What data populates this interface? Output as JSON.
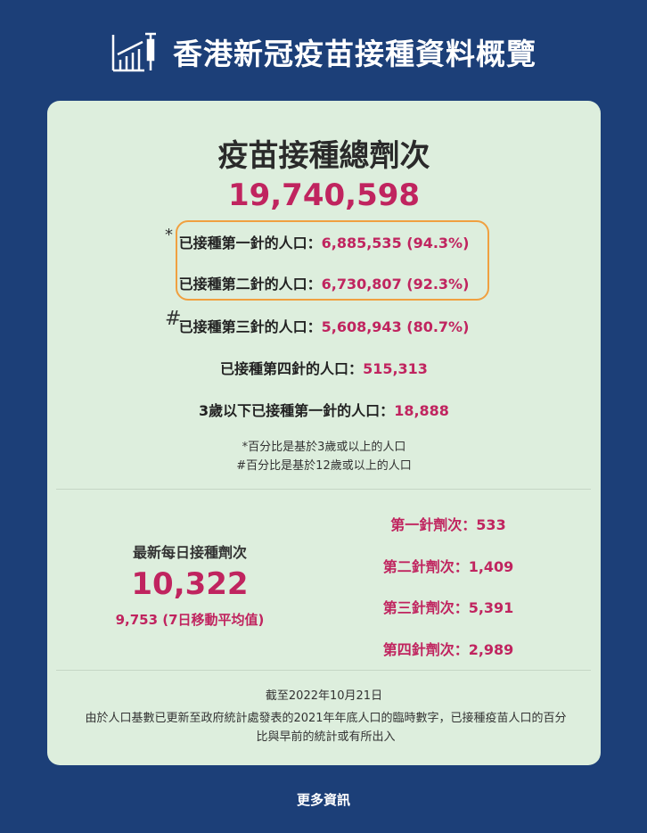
{
  "header": {
    "title": "香港新冠疫苗接種資料概覽",
    "icon": "chart-syringe-icon"
  },
  "summary": {
    "title": "疫苗接種總劑次",
    "total": "19,740,598",
    "rows": [
      {
        "marker": "*",
        "label": "已接種第一針的人口：",
        "value": "6,885,535 (94.3%)"
      },
      {
        "marker": "",
        "label": "已接種第二針的人口：",
        "value": "6,730,807 (92.3%)"
      },
      {
        "marker": "#",
        "label": "已接種第三針的人口：",
        "value": "5,608,943 (80.7%)"
      },
      {
        "marker": "",
        "label": "已接種第四針的人口：",
        "value": "515,313"
      },
      {
        "marker": "",
        "label": "3歲以下已接種第一針的人口：",
        "value": "18,888"
      }
    ],
    "notes": [
      "*百分比是基於3歲或以上的人口",
      "#百分比是基於12歲或以上的人口"
    ]
  },
  "daily": {
    "label": "最新每日接種劑次",
    "value": "10,322",
    "average": "9,753 (7日移動平均值)",
    "doses": [
      {
        "label": "第一針劑次：",
        "value": "533"
      },
      {
        "label": "第二針劑次：",
        "value": "1,409"
      },
      {
        "label": "第三針劑次：",
        "value": "5,391"
      },
      {
        "label": "第四針劑次：",
        "value": "2,989"
      }
    ]
  },
  "footnote": {
    "date": "截至2022年10月21日",
    "text": "由於人口基數已更新至政府統計處發表的2021年年底人口的臨時數字，已接種疫苗人口的百分比與早前的統計或有所出入"
  },
  "footer": {
    "more_link": "更多資訊"
  },
  "colors": {
    "background": "#1c3f78",
    "card": "#ddeedd",
    "accent": "#c0245f",
    "highlight_border": "#f0a040"
  }
}
